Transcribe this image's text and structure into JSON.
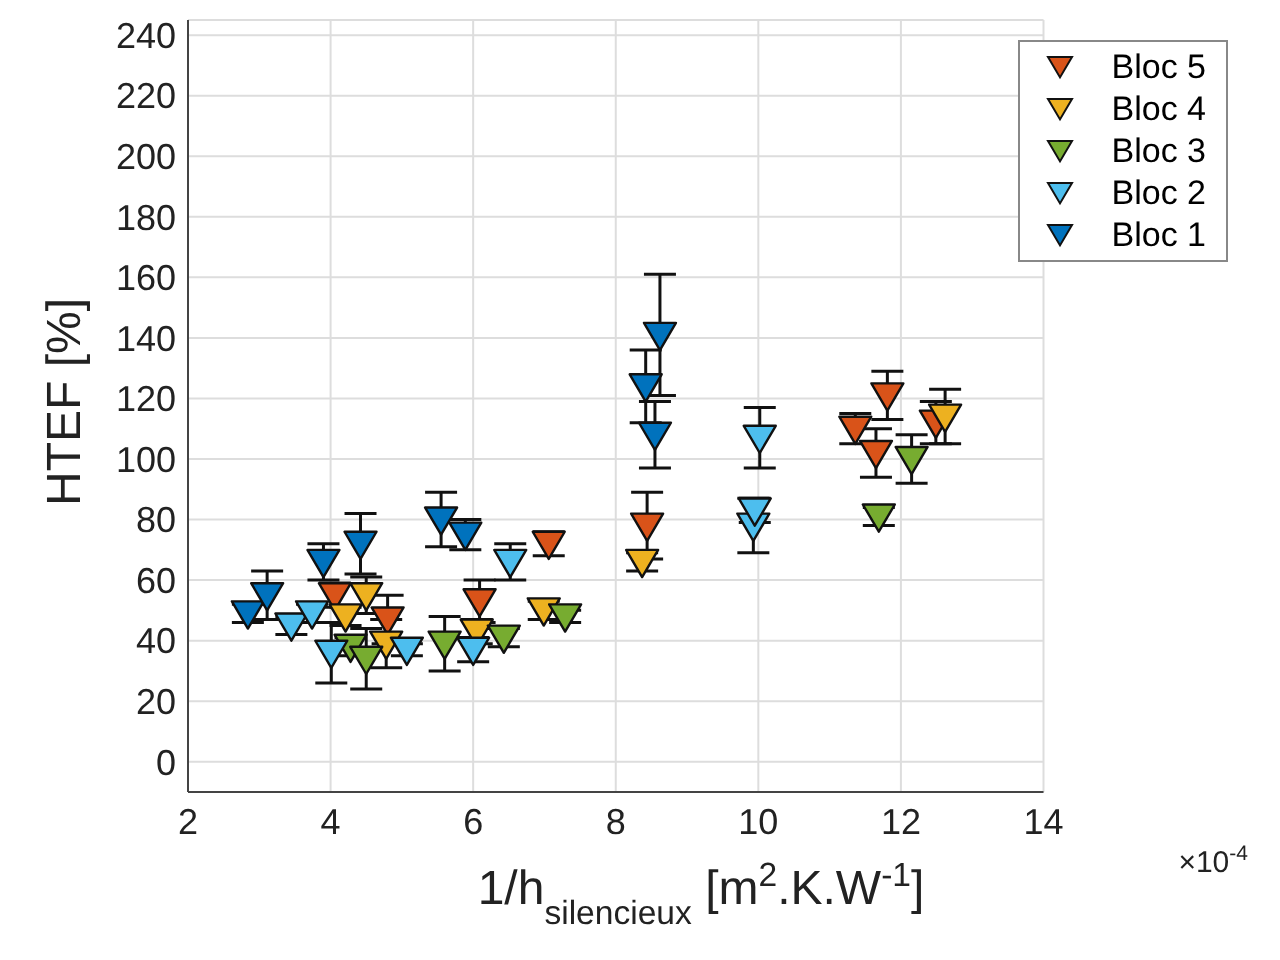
{
  "chart_data": {
    "type": "scatter",
    "xlabel": "1/h$_{silencieux}$ [m$^{2}$.K.W$^{-1}$]",
    "ylabel": "HTEF [%]",
    "xlim": [
      2,
      14
    ],
    "xticks": [
      2,
      4,
      6,
      8,
      10,
      12,
      14
    ],
    "ylim": [
      -10,
      245
    ],
    "yticks": [
      0,
      20,
      40,
      60,
      80,
      100,
      120,
      140,
      160,
      180,
      200,
      220,
      240
    ],
    "grid": true,
    "legend": "top right",
    "marker": "triangle",
    "annotations": [
      "×10$^{-4}$"
    ],
    "series": [
      {
        "name": "Bloc 5",
        "color": "#d95319",
        "x": [
          4.06,
          4.8,
          6.09,
          7.06,
          8.44,
          11.81,
          11.36,
          11.65,
          12.49
        ],
        "values": [
          55,
          47,
          53,
          72,
          78,
          121,
          110,
          102,
          112
        ],
        "errors": [
          4,
          8,
          7,
          4,
          11,
          8,
          5,
          8,
          7
        ]
      },
      {
        "name": "Bloc 4",
        "color": "#edb120",
        "x": [
          4.21,
          4.5,
          4.78,
          6.05,
          6.99,
          8.37,
          12.62
        ],
        "values": [
          48,
          55,
          39,
          43,
          50,
          66,
          114
        ],
        "errors": [
          3,
          6,
          8,
          4,
          3,
          3,
          9
        ]
      },
      {
        "name": "Bloc 3",
        "color": "#77ac30",
        "x": [
          4.28,
          4.5,
          5.6,
          6.43,
          7.29,
          11.69,
          12.15
        ],
        "values": [
          38,
          34,
          39,
          41,
          48,
          81,
          100
        ],
        "errors": [
          3,
          10,
          9,
          3,
          2,
          3,
          8
        ]
      },
      {
        "name": "Bloc 2",
        "color": "#4dbeee",
        "x": [
          3.45,
          3.74,
          4.01,
          5.07,
          6.0,
          6.52,
          9.93,
          9.95,
          10.02
        ],
        "values": [
          45,
          49,
          36,
          37,
          37,
          66,
          78,
          83,
          107
        ],
        "errors": [
          3,
          3,
          10,
          2,
          4,
          6,
          9,
          4,
          10
        ]
      },
      {
        "name": "Bloc 1",
        "color": "#0072bd",
        "x": [
          2.84,
          3.11,
          3.9,
          4.42,
          5.55,
          5.89,
          8.42,
          8.55,
          8.62
        ],
        "values": [
          49,
          55,
          66,
          72,
          80,
          75,
          124,
          108,
          141
        ],
        "errors": [
          3,
          8,
          6,
          10,
          9,
          5,
          12,
          11,
          20
        ]
      }
    ]
  }
}
